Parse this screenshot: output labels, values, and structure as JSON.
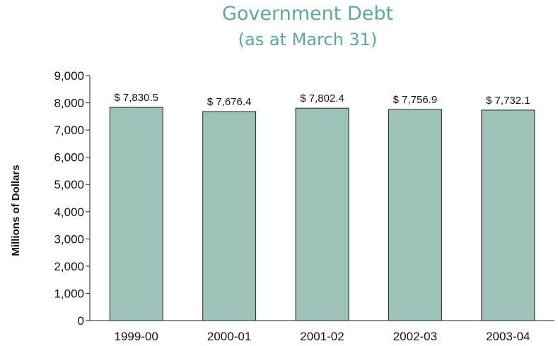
{
  "chart_data": {
    "type": "bar",
    "title": "Government Debt",
    "subtitle": "(as at March 31)",
    "xlabel": "",
    "ylabel": "Millions of Dollars",
    "categories": [
      "1999-00",
      "2000-01",
      "2001-02",
      "2002-03",
      "2003-04"
    ],
    "values": [
      7830.5,
      7676.4,
      7802.4,
      7756.9,
      7732.1
    ],
    "data_labels": [
      "$ 7,830.5",
      "$ 7,676.4",
      "$ 7,802.4",
      "$ 7,756.9",
      "$ 7,732.1"
    ],
    "ylim": [
      0,
      9000
    ],
    "yticks": [
      0,
      1000,
      2000,
      3000,
      4000,
      5000,
      6000,
      7000,
      8000,
      9000
    ],
    "ytick_labels": [
      "0",
      "1,000",
      "2,000",
      "3,000",
      "4,000",
      "5,000",
      "6,000",
      "7,000",
      "8,000",
      "9,000"
    ],
    "grid": false,
    "legend": "none",
    "colors": {
      "bar": "#9dc3b9",
      "bar_edge": "#222222",
      "title": "#5aaa98"
    }
  }
}
